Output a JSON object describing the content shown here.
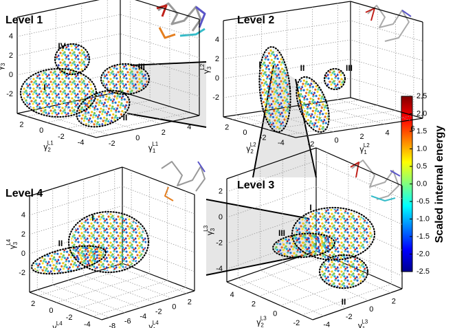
{
  "chart_data": [
    {
      "type": "scatter3d",
      "title": "Level 1",
      "xlabel": {
        "symbol": "γ",
        "sub": "1",
        "sup": "L1"
      },
      "ylabel": {
        "symbol": "γ",
        "sub": "2",
        "sup": "L1"
      },
      "zlabel": {
        "symbol": "γ",
        "sub": "3",
        "sup": "L1"
      },
      "xlim": [
        -3,
        5
      ],
      "ylim": [
        -5,
        3
      ],
      "zlim": [
        -4,
        6
      ],
      "xticks": [
        -2,
        0,
        2,
        4
      ],
      "yticks": [
        -4,
        -2,
        0,
        2
      ],
      "zticks": [
        -2,
        0,
        2,
        4
      ],
      "annotations": [
        "I",
        "II",
        "III",
        "IV"
      ]
    },
    {
      "type": "scatter3d",
      "title": "Level 2",
      "xlabel": {
        "symbol": "γ",
        "sub": "1",
        "sup": "L2"
      },
      "ylabel": {
        "symbol": "γ",
        "sub": "2",
        "sup": "L2"
      },
      "zlabel": {
        "symbol": "γ",
        "sub": "3",
        "sup": "L2"
      },
      "xlim": [
        -3,
        7
      ],
      "ylim": [
        -5,
        3
      ],
      "zlim": [
        -4,
        6
      ],
      "xticks": [
        -2,
        0,
        2,
        4,
        6
      ],
      "yticks": [
        -4,
        -2,
        0,
        2
      ],
      "zticks": [
        -2,
        0,
        2,
        4
      ],
      "annotations": [
        "I",
        "II",
        "III"
      ]
    },
    {
      "type": "scatter3d",
      "title": "Level 4",
      "xlabel": {
        "symbol": "γ",
        "sub": "1",
        "sup": "L4"
      },
      "ylabel": {
        "symbol": "γ",
        "sub": "2",
        "sup": "L4"
      },
      "zlabel": {
        "symbol": "γ",
        "sub": "3",
        "sup": "L4"
      },
      "xlim": [
        -9,
        3
      ],
      "ylim": [
        -5,
        3
      ],
      "zlim": [
        -4,
        6
      ],
      "xticks": [
        -8,
        -6,
        -4,
        -2,
        0,
        2
      ],
      "yticks": [
        -4,
        -2,
        0,
        2
      ],
      "zticks": [
        -2,
        0,
        2,
        4
      ],
      "annotations": [
        "I",
        "II"
      ]
    },
    {
      "type": "scatter3d",
      "title": "Level 3",
      "xlabel": {
        "symbol": "γ",
        "sub": "1",
        "sup": "L3"
      },
      "ylabel": {
        "symbol": "γ",
        "sub": "2",
        "sup": "L3"
      },
      "zlabel": {
        "symbol": "γ",
        "sub": "3",
        "sup": "L3"
      },
      "xlim": [
        -5,
        3
      ],
      "ylim": [
        -3,
        5
      ],
      "zlim": [
        -5,
        3
      ],
      "xticks": [
        -4,
        -2,
        0,
        2
      ],
      "yticks": [
        -2,
        0,
        2,
        4
      ],
      "zticks": [
        -4,
        -2,
        0,
        2
      ],
      "annotations": [
        "I",
        "II",
        "III"
      ]
    }
  ],
  "colorbar": {
    "label": "Scaled internal energy",
    "lim": [
      -2.5,
      2.5
    ],
    "ticks": [
      -2.5,
      {
        "value": -2,
        "label": "-2.0"
      },
      -1.5,
      {
        "value": -1,
        "label": "-1.0"
      },
      -0.5,
      {
        "value": 0,
        "label": "0.0"
      },
      0.5,
      {
        "value": 1,
        "label": "1.0"
      },
      1.5,
      {
        "value": 2,
        "label": "2.0"
      },
      2.5
    ]
  }
}
